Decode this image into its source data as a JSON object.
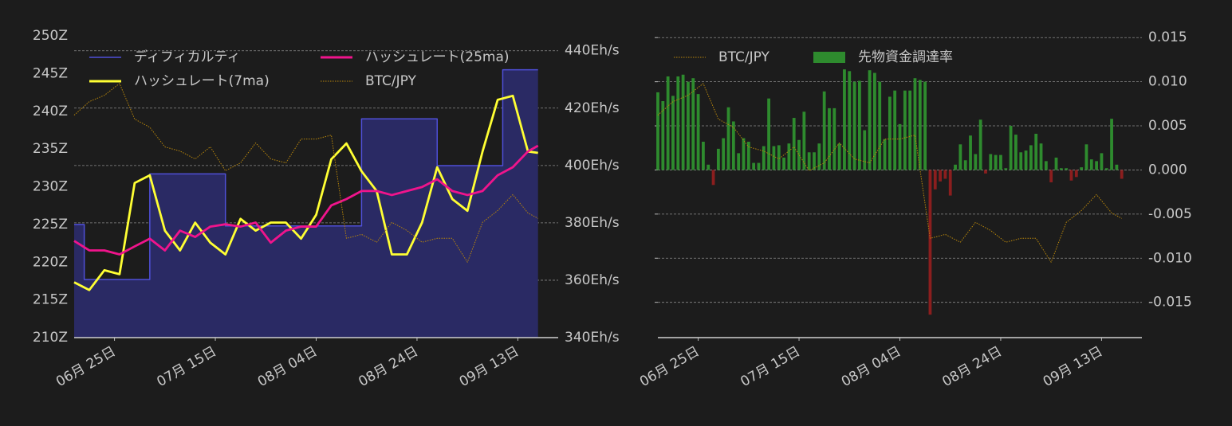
{
  "chart_data": [
    {
      "type": "line",
      "x": [
        "06-17",
        "06-20",
        "06-23",
        "06-26",
        "06-29",
        "07-02",
        "07-05",
        "07-08",
        "07-11",
        "07-14",
        "07-17",
        "07-20",
        "07-23",
        "07-26",
        "07-29",
        "08-01",
        "08-04",
        "08-07",
        "08-10",
        "08-13",
        "08-16",
        "08-19",
        "08-22",
        "08-25",
        "08-28",
        "08-31",
        "09-03",
        "09-06",
        "09-09",
        "09-12",
        "09-15",
        "09-17"
      ],
      "xlim": [
        "06-17",
        "09-21"
      ],
      "xticks": [
        {
          "value": "06-25",
          "label": "06月 25日"
        },
        {
          "value": "07-15",
          "label": "07月 15日"
        },
        {
          "value": "08-04",
          "label": "08月 04日"
        },
        {
          "value": "08-24",
          "label": "08月 24日"
        },
        {
          "value": "09-13",
          "label": "09月 13日"
        }
      ],
      "ylim": [
        210,
        250
      ],
      "yticks": [
        {
          "value": 210,
          "label": "210Z"
        },
        {
          "value": 215,
          "label": "215Z"
        },
        {
          "value": 220,
          "label": "220Z"
        },
        {
          "value": 225,
          "label": "225Z"
        },
        {
          "value": 230,
          "label": "230Z"
        },
        {
          "value": 235,
          "label": "235Z"
        },
        {
          "value": 240,
          "label": "240Z"
        },
        {
          "value": 245,
          "label": "245Z"
        },
        {
          "value": 250,
          "label": "250Z"
        }
      ],
      "y_side": "left",
      "y2lim": [
        340,
        445.2
      ],
      "y2ticks": [
        {
          "value": 340,
          "label": "340Eh/s"
        },
        {
          "value": 360,
          "label": "360Eh/s"
        },
        {
          "value": 380,
          "label": "380Eh/s"
        },
        {
          "value": 400,
          "label": "400Eh/s"
        },
        {
          "value": 420,
          "label": "420Eh/s"
        },
        {
          "value": 440,
          "label": "440Eh/s"
        }
      ],
      "y3lim": [
        3500000,
        4500000
      ],
      "grid": "y2",
      "series": [
        {
          "name": "ディフィカルティ",
          "color": "#4f4fd8",
          "fill_color": "#2a2a64",
          "step": true,
          "axis": "y",
          "x": [
            "06-17",
            "06-19",
            "07-02",
            "07-17",
            "08-13",
            "08-28",
            "09-10",
            "09-17"
          ],
          "values": [
            225.0,
            217.7,
            231.7,
            224.8,
            239.0,
            232.8,
            245.5,
            245.5
          ]
        },
        {
          "name": "ハッシュレート(7ma)",
          "color": "#ffff33",
          "axis": "y2",
          "values": [
            359.3,
            356.6,
            363.5,
            362.1,
            393.9,
            396.6,
            377.3,
            370.4,
            380.1,
            373.1,
            369.0,
            381.4,
            377.3,
            380.1,
            380.1,
            374.5,
            382.8,
            402.2,
            407.7,
            398.0,
            391.1,
            369.0,
            369.0,
            380.1,
            399.4,
            388.3,
            384.2,
            404.9,
            422.9,
            424.3,
            404.9,
            404.4
          ]
        },
        {
          "name": "ハッシュレート(25ma)",
          "color": "#f0148c",
          "axis": "y2",
          "values": [
            373.7,
            370.4,
            370.4,
            369.0,
            371.8,
            374.5,
            370.4,
            377.3,
            375.1,
            378.7,
            379.5,
            378.7,
            380.1,
            373.1,
            377.3,
            378.7,
            378.7,
            386.1,
            388.3,
            391.1,
            391.1,
            389.7,
            391.1,
            392.5,
            395.2,
            391.1,
            389.7,
            391.1,
            396.6,
            399.4,
            404.9,
            406.9
          ]
        },
        {
          "name": "BTC/JPY",
          "color": "#b8860b",
          "linestyle": "dotted",
          "axis": "y3",
          "values": [
            4237000,
            4282000,
            4303000,
            4342000,
            4224000,
            4197000,
            4132000,
            4118000,
            4092000,
            4132000,
            4053000,
            4079000,
            4145000,
            4092000,
            4079000,
            4158000,
            4158000,
            4171000,
            3829000,
            3842000,
            3816000,
            3882000,
            3855000,
            3816000,
            3829000,
            3829000,
            3750000,
            3882000,
            3921000,
            3974000,
            3913000,
            3895000
          ]
        }
      ]
    },
    {
      "type": "bar",
      "x": [
        "06-17",
        "06-18",
        "06-19",
        "06-20",
        "06-21",
        "06-22",
        "06-23",
        "06-24",
        "06-25",
        "06-26",
        "06-27",
        "06-28",
        "06-29",
        "06-30",
        "07-01",
        "07-02",
        "07-03",
        "07-04",
        "07-05",
        "07-06",
        "07-07",
        "07-08",
        "07-09",
        "07-10",
        "07-11",
        "07-12",
        "07-13",
        "07-14",
        "07-15",
        "07-16",
        "07-17",
        "07-18",
        "07-19",
        "07-20",
        "07-21",
        "07-22",
        "07-23",
        "07-24",
        "07-25",
        "07-26",
        "07-27",
        "07-28",
        "07-29",
        "07-30",
        "07-31",
        "08-01",
        "08-02",
        "08-03",
        "08-04",
        "08-05",
        "08-06",
        "08-07",
        "08-08",
        "08-09",
        "08-10",
        "08-11",
        "08-12",
        "08-13",
        "08-14",
        "08-15",
        "08-16",
        "08-17",
        "08-18",
        "08-19",
        "08-20",
        "08-21",
        "08-22",
        "08-23",
        "08-24",
        "08-25",
        "08-26",
        "08-27",
        "08-28",
        "08-29",
        "08-30",
        "08-31",
        "09-01",
        "09-02",
        "09-03",
        "09-04",
        "09-05",
        "09-06",
        "09-07",
        "09-08",
        "09-09",
        "09-10",
        "09-11",
        "09-12",
        "09-13",
        "09-14",
        "09-15",
        "09-16",
        "09-17"
      ],
      "xlim": [
        "06-17",
        "09-21"
      ],
      "xticks": [
        {
          "value": "06-25",
          "label": "06月 25日"
        },
        {
          "value": "07-15",
          "label": "07月 15日"
        },
        {
          "value": "08-04",
          "label": "08月 04日"
        },
        {
          "value": "08-24",
          "label": "08月 24日"
        },
        {
          "value": "09-13",
          "label": "09月 13日"
        }
      ],
      "ylim": [
        -0.019,
        0.0152
      ],
      "yticks": [
        0.015,
        {
          "value": 0.01,
          "label": "0.010"
        },
        0.005,
        {
          "value": 0,
          "label": "0.000"
        },
        -0.005,
        {
          "value": -0.01,
          "label": "-0.010"
        },
        -0.015
      ],
      "y_side": "right",
      "y3lim": [
        3500000,
        4500000
      ],
      "grid": "y",
      "series": [
        {
          "name": "BTC/JPY",
          "type": "line",
          "color": "#b8860b",
          "linestyle": "dotted",
          "axis": "y3",
          "x": [
            "06-17",
            "06-20",
            "06-23",
            "06-26",
            "06-29",
            "07-02",
            "07-05",
            "07-08",
            "07-11",
            "07-14",
            "07-17",
            "07-20",
            "07-23",
            "07-26",
            "07-29",
            "08-01",
            "08-04",
            "08-07",
            "08-10",
            "08-13",
            "08-16",
            "08-19",
            "08-22",
            "08-25",
            "08-28",
            "08-31",
            "09-03",
            "09-06",
            "09-09",
            "09-12",
            "09-15",
            "09-17"
          ],
          "values": [
            4237000,
            4282000,
            4303000,
            4342000,
            4224000,
            4197000,
            4132000,
            4118000,
            4092000,
            4132000,
            4053000,
            4079000,
            4145000,
            4092000,
            4079000,
            4158000,
            4158000,
            4171000,
            3829000,
            3842000,
            3816000,
            3882000,
            3855000,
            3816000,
            3829000,
            3829000,
            3750000,
            3882000,
            3921000,
            3974000,
            3913000,
            3895000
          ]
        },
        {
          "name": "先物資金調達率",
          "type": "bar",
          "color": "#2e8b2e",
          "negative_color": "#8b1e1e",
          "axis": "y",
          "values": [
            0.0088,
            0.0078,
            0.0106,
            0.0084,
            0.0106,
            0.0108,
            0.01,
            0.0104,
            0.0086,
            0.0032,
            0.0006,
            -0.0017,
            0.0024,
            0.0036,
            0.0071,
            0.0055,
            0.0019,
            0.0036,
            0.0032,
            0.0008,
            0.0008,
            0.0027,
            0.0081,
            0.0027,
            0.0028,
            0.0014,
            0.003,
            0.0059,
            0.0034,
            0.0066,
            0.002,
            0.002,
            0.003,
            0.0089,
            0.007,
            0.007,
            0.003,
            0.0114,
            0.0112,
            0.01,
            0.0101,
            0.0045,
            0.0113,
            0.011,
            0.01,
            0.0035,
            0.0083,
            0.009,
            0.0052,
            0.009,
            0.009,
            0.0104,
            0.0102,
            0.01,
            -0.0164,
            -0.0022,
            -0.0013,
            -0.001,
            -0.0029,
            0.0006,
            0.0029,
            0.0011,
            0.0039,
            0.0018,
            0.0057,
            -0.0004,
            0.0018,
            0.0017,
            0.0017,
            0.0002,
            0.005,
            0.004,
            0.002,
            0.0022,
            0.0028,
            0.0041,
            0.003,
            0.001,
            -0.0014,
            0.0014,
            0.0002,
            0.0002,
            -0.0012,
            -0.0008,
            0.0003,
            0.0029,
            0.0012,
            0.001,
            0.0019,
            0.0002,
            0.0058,
            0.0006,
            -0.001
          ]
        }
      ]
    }
  ]
}
